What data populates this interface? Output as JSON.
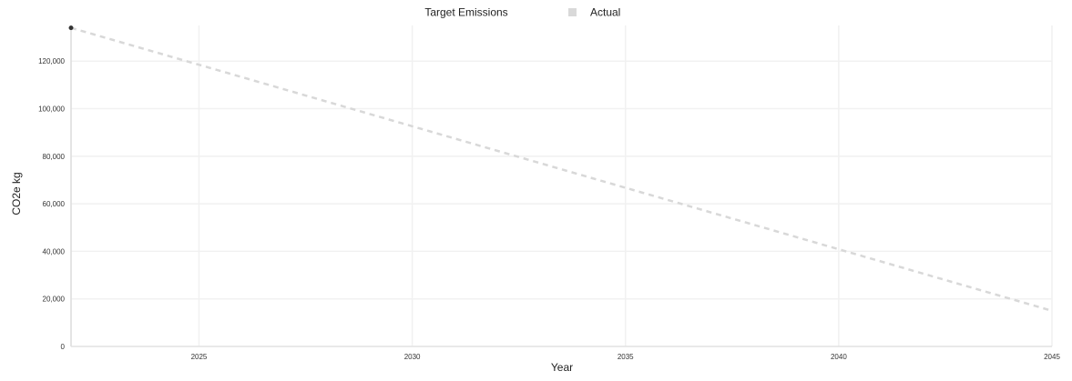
{
  "chart_data": {
    "type": "line",
    "title": "",
    "xlabel": "Year",
    "ylabel": "CO2e kg",
    "xlim": [
      2022,
      2045
    ],
    "ylim": [
      0,
      135000
    ],
    "x_ticks": [
      2025,
      2030,
      2035,
      2040,
      2045
    ],
    "y_ticks": [
      0,
      20000,
      40000,
      60000,
      80000,
      100000,
      120000
    ],
    "x_tick_labels": [
      "2025",
      "2030",
      "2035",
      "2040",
      "2045"
    ],
    "y_tick_labels": [
      "0",
      "20,000",
      "40,000",
      "60,000",
      "80,000",
      "100,000",
      "120,000"
    ],
    "grid": true,
    "legend_position": "top",
    "series": [
      {
        "name": "Target Emissions",
        "color": "#d8d8d8",
        "style": "dashed",
        "marker": "none",
        "x": [
          2022,
          2045
        ],
        "y": [
          134000,
          15000
        ]
      },
      {
        "name": "Actual",
        "color": "#333333",
        "style": "point",
        "marker": "circle",
        "x": [
          2022
        ],
        "y": [
          134000
        ]
      }
    ]
  }
}
